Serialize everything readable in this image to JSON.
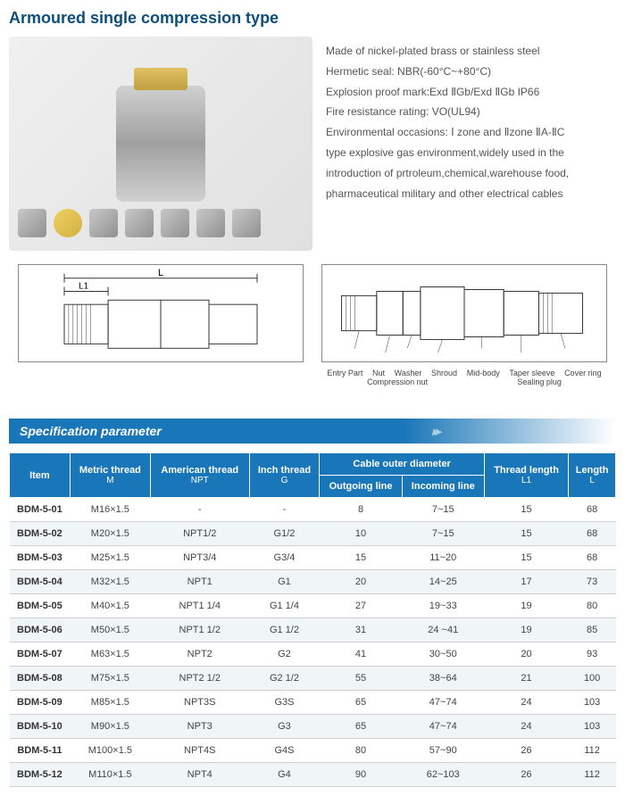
{
  "title": "Armoured single compression type",
  "description": [
    "Made of nickel-plated brass or stainless steel",
    "Hermetic seal: NBR(-60°C~+80°C)",
    "Explosion proof mark:Exd ⅡGb/Exd ⅡGb IP66",
    "Fire resistance rating: VO(UL94)",
    "Environmental occasions: Ⅰ zone and Ⅱzone ⅡA-ⅡC",
    "type explosive gas environment,widely used in the",
    "introduction of prtroleum,chemical,warehouse food,",
    "pharmaceutical military and other electrical cables"
  ],
  "diagram1": {
    "L": "L",
    "L1": "L1"
  },
  "diagram2_labels": [
    "Entry Part",
    "Nut",
    "Washer",
    "Shroud",
    "Mid-body",
    "Taper sleeve",
    "Cover ring",
    "Compression nut",
    "Sealing plug"
  ],
  "spec_header": "Specification parameter",
  "columns": {
    "item": "Item",
    "metric": "Metric thread",
    "metric_sub": "M",
    "american": "American thread",
    "american_sub": "NPT",
    "inch": "Inch thread",
    "inch_sub": "G",
    "cable": "Cable outer diameter",
    "outgoing": "Outgoing line",
    "incoming": "Incoming line",
    "thread_len": "Thread length",
    "thread_len_sub": "L1",
    "length": "Length",
    "length_sub": "L"
  },
  "rows": [
    {
      "item": "BDM-5-01",
      "metric": "M16×1.5",
      "american": "-",
      "inch": "-",
      "out": "8",
      "in": "7~15",
      "l1": "15",
      "l": "68"
    },
    {
      "item": "BDM-5-02",
      "metric": "M20×1.5",
      "american": "NPT1/2",
      "inch": "G1/2",
      "out": "10",
      "in": "7~15",
      "l1": "15",
      "l": "68"
    },
    {
      "item": "BDM-5-03",
      "metric": "M25×1.5",
      "american": "NPT3/4",
      "inch": "G3/4",
      "out": "15",
      "in": "11~20",
      "l1": "15",
      "l": "68"
    },
    {
      "item": "BDM-5-04",
      "metric": "M32×1.5",
      "american": "NPT1",
      "inch": "G1",
      "out": "20",
      "in": "14~25",
      "l1": "17",
      "l": "73"
    },
    {
      "item": "BDM-5-05",
      "metric": "M40×1.5",
      "american": "NPT1 1/4",
      "inch": "G1 1/4",
      "out": "27",
      "in": "19~33",
      "l1": "19",
      "l": "80"
    },
    {
      "item": "BDM-5-06",
      "metric": "M50×1.5",
      "american": "NPT1 1/2",
      "inch": "G1 1/2",
      "out": "31",
      "in": "24 ~41",
      "l1": "19",
      "l": "85"
    },
    {
      "item": "BDM-5-07",
      "metric": "M63×1.5",
      "american": "NPT2",
      "inch": "G2",
      "out": "41",
      "in": "30~50",
      "l1": "20",
      "l": "93"
    },
    {
      "item": "BDM-5-08",
      "metric": "M75×1.5",
      "american": "NPT2 1/2",
      "inch": "G2 1/2",
      "out": "55",
      "in": "38~64",
      "l1": "21",
      "l": "100"
    },
    {
      "item": "BDM-5-09",
      "metric": "M85×1.5",
      "american": "NPT3S",
      "inch": "G3S",
      "out": "65",
      "in": "47~74",
      "l1": "24",
      "l": "103"
    },
    {
      "item": "BDM-5-10",
      "metric": "M90×1.5",
      "american": "NPT3",
      "inch": "G3",
      "out": "65",
      "in": "47~74",
      "l1": "24",
      "l": "103"
    },
    {
      "item": "BDM-5-11",
      "metric": "M100×1.5",
      "american": "NPT4S",
      "inch": "G4S",
      "out": "80",
      "in": "57~90",
      "l1": "26",
      "l": "112"
    },
    {
      "item": "BDM-5-12",
      "metric": "M110×1.5",
      "american": "NPT4",
      "inch": "G4",
      "out": "90",
      "in": "62~103",
      "l1": "26",
      "l": "112"
    }
  ],
  "colors": {
    "header_bg": "#1976b8",
    "title_color": "#0d4f7a",
    "row_alt": "#f0f5f8",
    "border": "#d0d0d0"
  }
}
